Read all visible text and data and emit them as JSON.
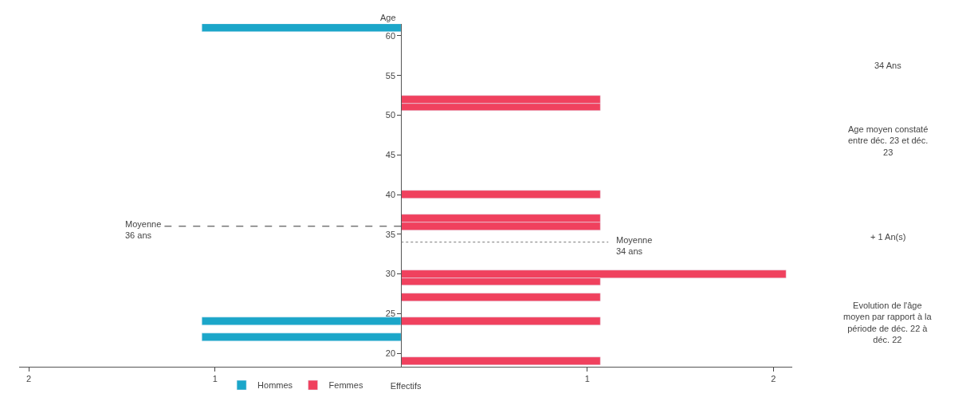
{
  "chart_data": {
    "type": "bar",
    "orientation": "horizontal",
    "xlabel": "Effectifs",
    "ylabel": "Age",
    "series": [
      {
        "name": "Hommes",
        "color": "#1ba6c9",
        "x": [
          61,
          24,
          22
        ],
        "values": [
          -1.07,
          -1.07,
          -1.07
        ]
      },
      {
        "name": "Femmes",
        "color": "#f0415e",
        "x": [
          52,
          51,
          40,
          37,
          36,
          30,
          29,
          27,
          24,
          19
        ],
        "values": [
          1.07,
          1.07,
          1.07,
          1.07,
          1.07,
          2.07,
          1.07,
          1.07,
          1.07,
          1.07
        ]
      }
    ],
    "xlim": [
      -2.05,
      2.1
    ],
    "xticks": [
      {
        "value": -2,
        "label": "2"
      },
      {
        "value": -1,
        "label": "1"
      },
      {
        "value": 1,
        "label": "1"
      },
      {
        "value": 2,
        "label": "2"
      }
    ],
    "ylim": [
      18.3,
      61.5
    ],
    "yticks": [
      20,
      25,
      30,
      35,
      40,
      45,
      50,
      55,
      60
    ],
    "ref_lines": [
      {
        "axis": "y",
        "value": 36,
        "label": "Moyenne 36 ans",
        "color": "#333333",
        "line_style": "dashed"
      },
      {
        "axis": "y",
        "value": 34,
        "label": "Moyenne 34 ans",
        "color": "#777777",
        "line_style": "dotted"
      }
    ],
    "annotations": [
      "34 Ans",
      "Age moyen constaté entre déc. 23 et déc. 23",
      "+ 1 An(s)",
      "Evolution de l'âge moyen par rapport à la période de déc. 22 à déc. 22"
    ],
    "legend": "bottom"
  }
}
